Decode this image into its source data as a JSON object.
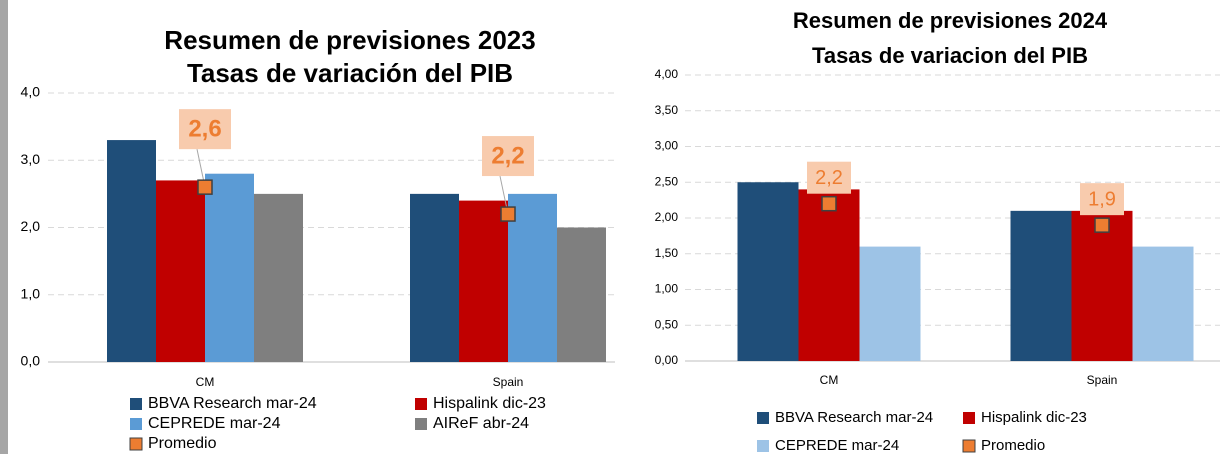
{
  "chart_data": [
    {
      "type": "bar",
      "title": "Resumen de previsiones 2023",
      "subtitle": "Tasas de variación del PIB",
      "categories": [
        "CM",
        "Spain"
      ],
      "ylim": [
        0,
        4
      ],
      "yticks": [
        {
          "value": 0,
          "label": "0,0"
        },
        {
          "value": 1,
          "label": "1,0"
        },
        {
          "value": 2,
          "label": "2,0"
        },
        {
          "value": 3,
          "label": "3,0"
        },
        {
          "value": 4,
          "label": "4,0"
        }
      ],
      "grid": true,
      "series": [
        {
          "name": "BBVA Research mar-24",
          "color": "#1f4e79",
          "values": [
            3.3,
            2.5
          ]
        },
        {
          "name": "Hispalink dic-23",
          "color": "#c00000",
          "values": [
            2.7,
            2.4
          ]
        },
        {
          "name": "CEPREDE mar-24",
          "color": "#5b9bd5",
          "values": [
            2.8,
            2.5
          ]
        },
        {
          "name": "AIReF abr-24",
          "color": "#7f7f7f",
          "values": [
            2.5,
            2.0
          ]
        },
        {
          "name": "Promedio",
          "color": "#ed7d31",
          "kind": "marker",
          "values": [
            2.6,
            2.2
          ],
          "value_labels": [
            "2,6",
            "2,2"
          ]
        }
      ]
    },
    {
      "type": "bar",
      "title": "Resumen de previsiones 2024",
      "subtitle": "Tasas de variacion del PIB",
      "categories": [
        "CM",
        "Spain"
      ],
      "ylim": [
        0,
        4
      ],
      "yticks": [
        {
          "value": 0,
          "label": "0,00"
        },
        {
          "value": 0.5,
          "label": "0,50"
        },
        {
          "value": 1,
          "label": "1,00"
        },
        {
          "value": 1.5,
          "label": "1,50"
        },
        {
          "value": 2,
          "label": "2,00"
        },
        {
          "value": 2.5,
          "label": "2,50"
        },
        {
          "value": 3,
          "label": "3,00"
        },
        {
          "value": 3.5,
          "label": "3,50"
        },
        {
          "value": 4,
          "label": "4,00"
        }
      ],
      "grid": true,
      "series": [
        {
          "name": "BBVA Research mar-24",
          "color": "#1f4e79",
          "values": [
            2.5,
            2.1
          ]
        },
        {
          "name": "Hispalink dic-23",
          "color": "#c00000",
          "values": [
            2.4,
            2.1
          ]
        },
        {
          "name": "CEPREDE mar-24",
          "color": "#9dc3e6",
          "values": [
            1.6,
            1.6
          ]
        },
        {
          "name": "Promedio",
          "color": "#ed7d31",
          "kind": "marker",
          "values": [
            2.2,
            1.9
          ],
          "value_labels": [
            "2,2",
            "1,9"
          ]
        }
      ]
    }
  ]
}
